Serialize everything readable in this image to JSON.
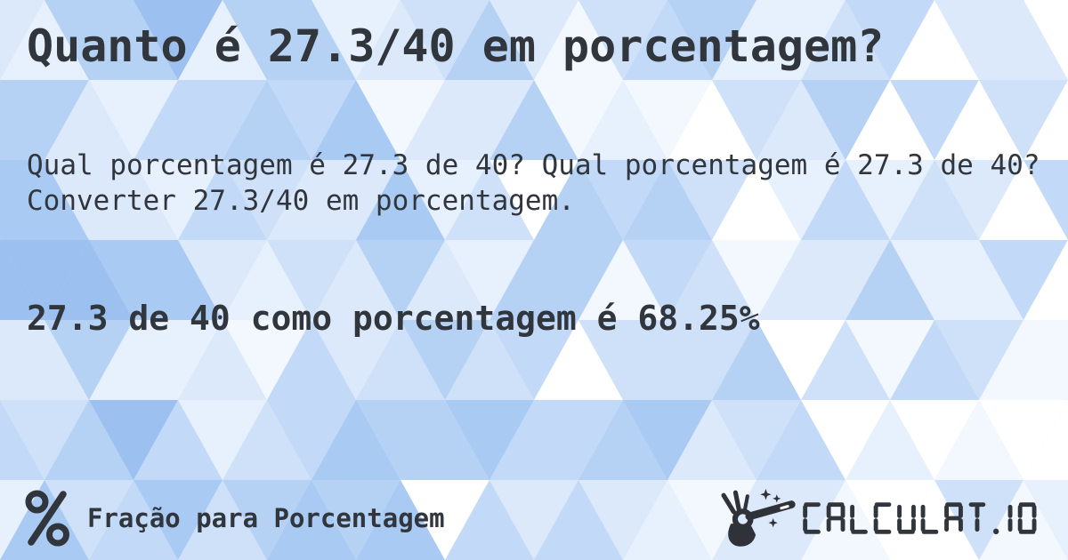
{
  "card": {
    "title": "Quanto é 27.3/40 em porcentagem?",
    "description": "Qual porcentagem é 27.3 de 40? Qual porcentagem é 27.3 de 40? Converter 27.3/40 em porcentagem.",
    "answer": "27.3 de 40 como porcentagem é 68.25%"
  },
  "footer": {
    "category_icon": "percent-icon",
    "category_label": "Fração para Porcentagem",
    "brand_icon": "magic-wand-hand-icon",
    "brand_wordmark": "CALCULAT.IO"
  },
  "colors": {
    "text": "#31353c",
    "background_palette": [
      "#9cc0f0",
      "#a9caf3",
      "#b5d2f5",
      "#c2daf7",
      "#cee1f9",
      "#dbe9fb",
      "#e7f0fd",
      "#f3f8fe",
      "#ffffff"
    ]
  }
}
